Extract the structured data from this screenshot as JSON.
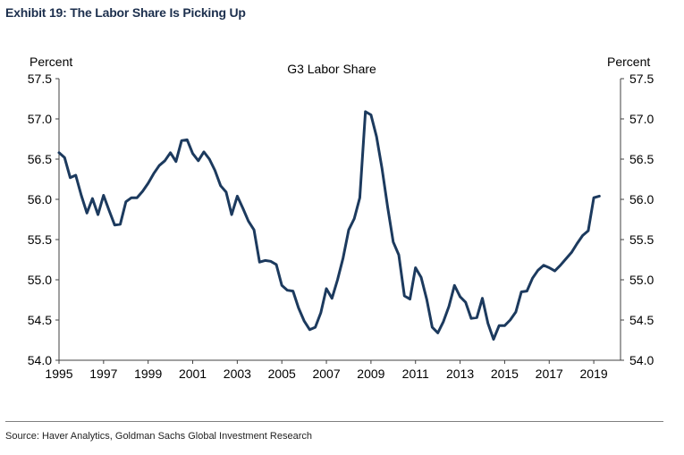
{
  "exhibit_title": "Exhibit 19: The Labor Share Is Picking Up",
  "source": "Source: Haver Analytics, Goldman Sachs Global Investment Research",
  "colors": {
    "line": "#1c3a5e",
    "axis": "#404040"
  },
  "chart_data": {
    "type": "line",
    "title": "G3 Labor Share",
    "ylabel_left": "Percent",
    "ylabel_right": "Percent",
    "xlim": [
      1995,
      2020.2
    ],
    "ylim": [
      54.0,
      57.5
    ],
    "xticks": [
      1995,
      1997,
      1999,
      2001,
      2003,
      2005,
      2007,
      2009,
      2011,
      2013,
      2015,
      2017,
      2019
    ],
    "yticks": [
      54.0,
      54.5,
      55.0,
      55.5,
      56.0,
      56.5,
      57.0,
      57.5
    ],
    "series": [
      {
        "name": "G3 Labor Share",
        "x": [
          1995.0,
          1995.25,
          1995.5,
          1995.75,
          1996.0,
          1996.25,
          1996.5,
          1996.75,
          1997.0,
          1997.25,
          1997.5,
          1997.75,
          1998.0,
          1998.25,
          1998.5,
          1998.75,
          1999.0,
          1999.25,
          1999.5,
          1999.75,
          2000.0,
          2000.25,
          2000.5,
          2000.75,
          2001.0,
          2001.25,
          2001.5,
          2001.75,
          2002.0,
          2002.25,
          2002.5,
          2002.75,
          2003.0,
          2003.25,
          2003.5,
          2003.75,
          2004.0,
          2004.25,
          2004.5,
          2004.75,
          2005.0,
          2005.25,
          2005.5,
          2005.75,
          2006.0,
          2006.25,
          2006.5,
          2006.75,
          2007.0,
          2007.25,
          2007.5,
          2007.75,
          2008.0,
          2008.25,
          2008.5,
          2008.75,
          2009.0,
          2009.25,
          2009.5,
          2009.75,
          2010.0,
          2010.25,
          2010.5,
          2010.75,
          2011.0,
          2011.25,
          2011.5,
          2011.75,
          2012.0,
          2012.25,
          2012.5,
          2012.75,
          2013.0,
          2013.25,
          2013.5,
          2013.75,
          2014.0,
          2014.25,
          2014.5,
          2014.75,
          2015.0,
          2015.25,
          2015.5,
          2015.75,
          2016.0,
          2016.25,
          2016.5,
          2016.75,
          2017.0,
          2017.25,
          2017.5,
          2017.75,
          2018.0,
          2018.25,
          2018.5,
          2018.75,
          2019.0,
          2019.25
        ],
        "values": [
          56.58,
          56.52,
          56.27,
          56.3,
          56.05,
          55.83,
          56.01,
          55.81,
          56.05,
          55.86,
          55.68,
          55.69,
          55.97,
          56.02,
          56.02,
          56.1,
          56.2,
          56.32,
          56.42,
          56.48,
          56.58,
          56.47,
          56.73,
          56.74,
          56.57,
          56.48,
          56.59,
          56.5,
          56.36,
          56.17,
          56.09,
          55.81,
          56.04,
          55.89,
          55.73,
          55.62,
          55.22,
          55.24,
          55.23,
          55.19,
          54.93,
          54.87,
          54.86,
          54.65,
          54.49,
          54.38,
          54.41,
          54.59,
          54.89,
          54.77,
          55.0,
          55.27,
          55.62,
          55.76,
          56.02,
          57.09,
          57.05,
          56.78,
          56.38,
          55.9,
          55.47,
          55.31,
          54.8,
          54.76,
          55.15,
          55.03,
          54.76,
          54.41,
          54.34,
          54.48,
          54.67,
          54.93,
          54.79,
          54.72,
          54.52,
          54.53,
          54.77,
          54.46,
          54.26,
          54.43,
          54.43,
          54.5,
          54.6,
          54.85,
          54.86,
          55.02,
          55.12,
          55.18,
          55.15,
          55.11,
          55.18,
          55.26,
          55.34,
          55.45,
          55.55,
          55.61,
          56.02,
          56.04
        ]
      }
    ]
  }
}
